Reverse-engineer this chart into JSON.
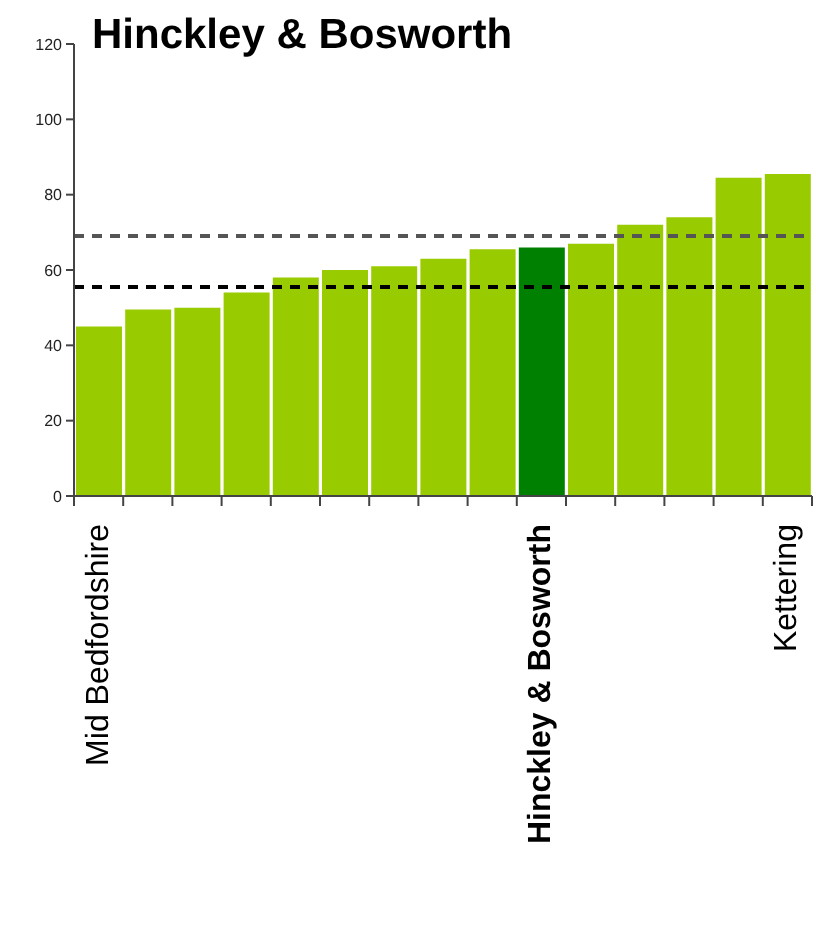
{
  "chart_data": {
    "type": "bar",
    "title": "Hinckley & Bosworth",
    "categories": [
      "Mid Bedfordshire",
      null,
      null,
      null,
      null,
      null,
      null,
      null,
      null,
      "Hinckley & Bosworth",
      null,
      null,
      null,
      null,
      "Kettering"
    ],
    "values": [
      45,
      49.5,
      50,
      54,
      58,
      60,
      61,
      63,
      65.5,
      66,
      67,
      72,
      74,
      84.5,
      85.5
    ],
    "colors": [
      "#99cc00",
      "#99cc00",
      "#99cc00",
      "#99cc00",
      "#99cc00",
      "#99cc00",
      "#99cc00",
      "#99cc00",
      "#99cc00",
      "#008000",
      "#99cc00",
      "#99cc00",
      "#99cc00",
      "#99cc00",
      "#99cc00"
    ],
    "ylim": [
      0,
      120
    ],
    "yticks": [
      0,
      20,
      40,
      60,
      80,
      100,
      120
    ],
    "ref_lines": [
      {
        "axis": "y",
        "value": 69,
        "color": "#555555",
        "line_style": "dashed"
      },
      {
        "axis": "y",
        "value": 55.5,
        "color": "#000000",
        "line_style": "dashed"
      }
    ]
  }
}
